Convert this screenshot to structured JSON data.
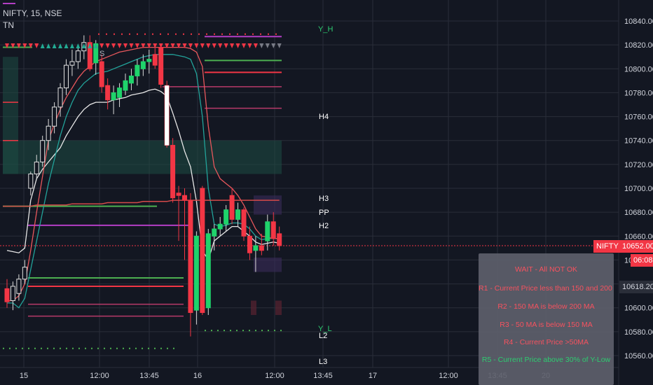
{
  "header": {
    "symbol_line": "NIFTY, 15, NSE",
    "indicator": "TN"
  },
  "chart_data": {
    "type": "candlestick",
    "ylim": [
      10552,
      10852
    ],
    "yticks": [
      10840,
      10820,
      10800,
      10780,
      10760,
      10740,
      10720,
      10700,
      10680,
      10660,
      10640,
      10620,
      10600,
      10580,
      10560
    ],
    "ytick_labels": [
      "10840.00",
      "10820.00",
      "10800.00",
      "10780.00",
      "10760.00",
      "10740.00",
      "10720.00",
      "10700.00",
      "10680.00",
      "10660.00",
      "10640.00",
      "10620.00",
      "10600.00",
      "10580.00",
      "10560.00"
    ],
    "xticks": [
      "15",
      "12:00",
      "13:45",
      "16",
      "12:00",
      "13:45",
      "17",
      "12:00",
      "13:45",
      "20"
    ],
    "candles": [
      {
        "o": 10616,
        "h": 10624,
        "l": 10600,
        "c": 10605
      },
      {
        "o": 10606,
        "h": 10622,
        "l": 10598,
        "c": 10618
      },
      {
        "o": 10612,
        "h": 10628,
        "l": 10606,
        "c": 10624
      },
      {
        "o": 10624,
        "h": 10640,
        "l": 10620,
        "c": 10634
      },
      {
        "o": 10700,
        "h": 10714,
        "l": 10694,
        "c": 10712
      },
      {
        "o": 10712,
        "h": 10728,
        "l": 10708,
        "c": 10722
      },
      {
        "o": 10722,
        "h": 10744,
        "l": 10718,
        "c": 10740
      },
      {
        "o": 10740,
        "h": 10758,
        "l": 10732,
        "c": 10752
      },
      {
        "o": 10752,
        "h": 10772,
        "l": 10746,
        "c": 10768
      },
      {
        "o": 10768,
        "h": 10788,
        "l": 10760,
        "c": 10784
      },
      {
        "o": 10784,
        "h": 10808,
        "l": 10778,
        "c": 10803
      },
      {
        "o": 10803,
        "h": 10816,
        "l": 10794,
        "c": 10806
      },
      {
        "o": 10806,
        "h": 10820,
        "l": 10800,
        "c": 10815
      },
      {
        "o": 10815,
        "h": 10828,
        "l": 10808,
        "c": 10822
      },
      {
        "o": 10822,
        "h": 10828,
        "l": 10798,
        "c": 10800
      },
      {
        "o": 10805,
        "h": 10824,
        "l": 10795,
        "c": 10821
      },
      {
        "o": 10806,
        "h": 10812,
        "l": 10780,
        "c": 10785
      },
      {
        "o": 10786,
        "h": 10792,
        "l": 10766,
        "c": 10774
      },
      {
        "o": 10774,
        "h": 10786,
        "l": 10762,
        "c": 10780
      },
      {
        "o": 10776,
        "h": 10788,
        "l": 10768,
        "c": 10784
      },
      {
        "o": 10782,
        "h": 10796,
        "l": 10778,
        "c": 10790
      },
      {
        "o": 10788,
        "h": 10800,
        "l": 10782,
        "c": 10794
      },
      {
        "o": 10794,
        "h": 10808,
        "l": 10786,
        "c": 10803
      },
      {
        "o": 10800,
        "h": 10812,
        "l": 10794,
        "c": 10806
      },
      {
        "o": 10806,
        "h": 10816,
        "l": 10796,
        "c": 10808
      },
      {
        "o": 10812,
        "h": 10818,
        "l": 10800,
        "c": 10803
      },
      {
        "o": 10818,
        "h": 10820,
        "l": 10784,
        "c": 10787
      },
      {
        "o": 10786,
        "h": 10790,
        "l": 10734,
        "c": 10736
      },
      {
        "o": 10736,
        "h": 10742,
        "l": 10688,
        "c": 10692
      },
      {
        "o": 10696,
        "h": 10702,
        "l": 10656,
        "c": 10694
      },
      {
        "o": 10694,
        "h": 10700,
        "l": 10640,
        "c": 10690
      },
      {
        "o": 10690,
        "h": 10696,
        "l": 10576,
        "c": 10596
      },
      {
        "o": 10598,
        "h": 10664,
        "l": 10586,
        "c": 10660
      },
      {
        "o": 10700,
        "h": 10702,
        "l": 10594,
        "c": 10596
      },
      {
        "o": 10600,
        "h": 10666,
        "l": 10594,
        "c": 10662
      },
      {
        "o": 10660,
        "h": 10670,
        "l": 10648,
        "c": 10666
      },
      {
        "o": 10666,
        "h": 10676,
        "l": 10660,
        "c": 10670
      },
      {
        "o": 10670,
        "h": 10686,
        "l": 10664,
        "c": 10682
      },
      {
        "o": 10694,
        "h": 10700,
        "l": 10670,
        "c": 10674
      },
      {
        "o": 10674,
        "h": 10688,
        "l": 10668,
        "c": 10682
      },
      {
        "o": 10682,
        "h": 10684,
        "l": 10656,
        "c": 10660
      },
      {
        "o": 10660,
        "h": 10668,
        "l": 10640,
        "c": 10646
      },
      {
        "o": 10648,
        "h": 10660,
        "l": 10630,
        "c": 10652
      },
      {
        "o": 10652,
        "h": 10662,
        "l": 10644,
        "c": 10648
      },
      {
        "o": 10656,
        "h": 10678,
        "l": 10648,
        "c": 10672
      },
      {
        "o": 10672,
        "h": 10680,
        "l": 10652,
        "c": 10658
      },
      {
        "o": 10662,
        "h": 10668,
        "l": 10648,
        "c": 10652
      }
    ],
    "series": [
      {
        "kind": "ma_white",
        "values": [
          10648,
          10647,
          10646,
          10650,
          10690,
          10708,
          10716,
          10722,
          10728,
          10734,
          10744,
          10752,
          10760,
          10766,
          10770,
          10772,
          10772,
          10772,
          10774,
          10775,
          10776,
          10778,
          10779,
          10780,
          10782,
          10783,
          10781,
          10777,
          10763,
          10748,
          10731,
          10718,
          10689,
          10648,
          10640,
          10656,
          10660,
          10664,
          10668,
          10668,
          10664,
          10660,
          10655,
          10653,
          10654,
          10655,
          10654
        ]
      },
      {
        "kind": "ma_teal",
        "values": [
          10604,
          10604,
          10600,
          10608,
          10632,
          10656,
          10680,
          10704,
          10724,
          10744,
          10760,
          10772,
          10782,
          10788,
          10792,
          10796,
          10797,
          10798,
          10800,
          10802,
          10804,
          10806,
          10808,
          10810,
          10811,
          10812,
          10812,
          10812,
          10812,
          10811,
          10810,
          10808,
          10796,
          10760,
          10700,
          10670,
          10668,
          10669,
          10671,
          10671,
          10670,
          10666,
          10660,
          10657,
          10658,
          10658,
          10658
        ]
      },
      {
        "kind": "ma_red",
        "values": [
          10606,
          10606,
          10610,
          10620,
          10648,
          10680,
          10710,
          10740,
          10754,
          10766,
          10776,
          10784,
          10792,
          10798,
          10802,
          10806,
          10808,
          10810,
          10812,
          10814,
          10815,
          10816,
          10817,
          10818,
          10818,
          10818,
          10818,
          10818,
          10818,
          10818,
          10818,
          10817,
          10814,
          10802,
          10752,
          10718,
          10708,
          10704,
          10700,
          10694,
          10686,
          10676,
          10666,
          10660,
          10659,
          10658,
          10658
        ]
      },
      {
        "kind": "ma_long",
        "values": [
          10685,
          10685,
          10685,
          10685,
          10685,
          10686,
          10686,
          10686,
          10686,
          10686,
          10686,
          10687,
          10687,
          10687,
          10687,
          10687,
          10687,
          10688,
          10688,
          10688,
          10688,
          10688,
          10688,
          10689,
          10689,
          10689,
          10689,
          10689,
          10690,
          10690,
          10690,
          10690,
          10690,
          10690,
          10690,
          10690,
          10690,
          10690,
          10690,
          10690,
          10690,
          10690,
          10690,
          10690,
          10690,
          10690,
          10690
        ]
      }
    ],
    "levels": [
      {
        "name": "Y_H",
        "value": 10830,
        "color": "#4caf50",
        "label_color": "#2ecc71",
        "label": "Y_H"
      },
      {
        "name": "H4",
        "value": 10764,
        "color": "#ffffff",
        "label": "H4"
      },
      {
        "name": "H3",
        "value": 10694,
        "color": "#ffffff",
        "label": "H3"
      },
      {
        "name": "PP",
        "value": 10683,
        "color": "#ffffff",
        "label": "PP"
      },
      {
        "name": "H2",
        "value": 10672,
        "color": "#ffffff",
        "label": "H2"
      },
      {
        "name": "Y_L",
        "value": 10583,
        "color": "#4caf50",
        "label_color": "#2ecc71",
        "label": "Y_L"
      },
      {
        "name": "L2",
        "value": 10580,
        "color": "#ffffff",
        "label": "L2"
      },
      {
        "name": "L3",
        "value": 10556,
        "color": "#ffffff",
        "label": "L3"
      }
    ],
    "current_price": {
      "symbol": "NIFTY",
      "value": "10652.00",
      "countdown": "06:08",
      "value_num": 10652,
      "color": "#f23645"
    },
    "secondary_price": {
      "value": "10618.20",
      "value_num": 10618.2
    },
    "signal_marker": "S"
  },
  "info_box": {
    "lines": [
      {
        "text": "WAIT - All NOT OK",
        "color": "#f7525f"
      },
      {
        "text": "R1 - Current Price less than 150 and 200 MA",
        "color": "#f7525f"
      },
      {
        "text": "R2 - 150 MA is below 200 MA",
        "color": "#f7525f"
      },
      {
        "text": "R3 - 50 MA is below 150 MA",
        "color": "#f7525f"
      },
      {
        "text": "R4 - Current Price >50MA",
        "color": "#f7525f"
      },
      {
        "text": "R5 - Current Price above 30% of Y-Low",
        "color": "#2ecc71"
      }
    ]
  },
  "colors": {
    "background": "#131722",
    "bull": "#22ab94",
    "bull_body": "#1fd36b",
    "bear": "#f23645",
    "grid": "#2a2e39",
    "axis_text": "#d1d4dc"
  }
}
